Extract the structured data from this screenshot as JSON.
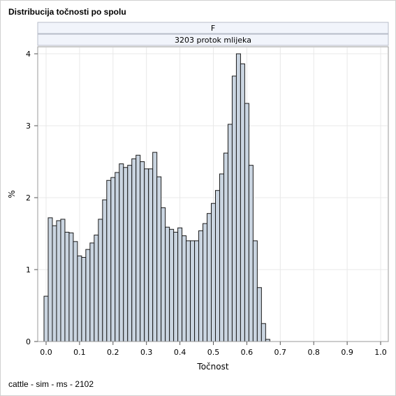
{
  "page": {
    "title": "Distribucija točnosti po spolu",
    "footnote": "cattle - sim - ms - 2102"
  },
  "chart_data": {
    "type": "bar",
    "title": "Distribucija točnosti po spolu",
    "panel_header": "F",
    "panel_subheader": "3203 protok mlijeka",
    "xlabel": "Točnost",
    "ylabel": "%",
    "xlim": [
      0.0,
      1.0
    ],
    "ylim": [
      0,
      4.0
    ],
    "x_ticks": [
      "0.0",
      "0.1",
      "0.2",
      "0.3",
      "0.4",
      "0.5",
      "0.6",
      "0.7",
      "0.8",
      "0.9",
      "1.0"
    ],
    "y_ticks": [
      "0",
      "1",
      "2",
      "3",
      "4"
    ],
    "bin_width": 0.0125,
    "bin_start": 0.0,
    "values": [
      0.63,
      1.72,
      1.61,
      1.68,
      1.7,
      1.52,
      1.51,
      1.39,
      1.19,
      1.17,
      1.28,
      1.37,
      1.48,
      1.7,
      1.97,
      2.24,
      2.28,
      2.35,
      2.47,
      2.42,
      2.45,
      2.54,
      2.59,
      2.5,
      2.4,
      2.4,
      2.63,
      2.29,
      1.86,
      1.59,
      1.56,
      1.52,
      1.58,
      1.47,
      1.4,
      1.4,
      1.4,
      1.54,
      1.64,
      1.78,
      1.92,
      2.1,
      2.33,
      2.62,
      3.02,
      3.69,
      4.0,
      3.86,
      3.31,
      2.45,
      1.4,
      0.75,
      0.25,
      0.03,
      0.0,
      0.0,
      0.0,
      0.0,
      0.0,
      0.0,
      0.0,
      0.0,
      0.0,
      0.0,
      0.0,
      0.0,
      0.0,
      0.0,
      0.0,
      0.0,
      0.0,
      0.0,
      0.0,
      0.0,
      0.0,
      0.0,
      0.0,
      0.0,
      0.0,
      0.0
    ],
    "grid": true,
    "colors": {
      "bar_fill": "#cad5e1",
      "bar_stroke": "#1a1a1a",
      "grid": "#e8e8e8",
      "strip_fill": "#f1f4fb",
      "strip_stroke": "#b8bcc8"
    }
  }
}
